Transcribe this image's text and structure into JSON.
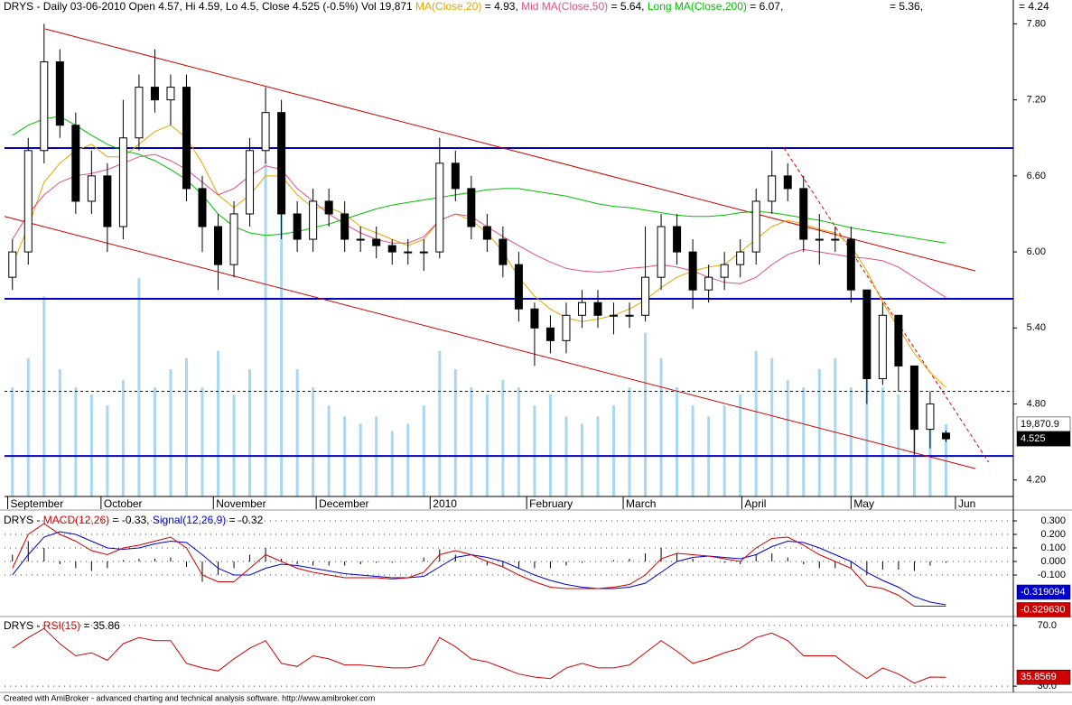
{
  "chart_data": [
    {
      "type": "candlestick",
      "title_parts": [
        {
          "text": "DRYS - Daily 03-06-2010 Open 4.57, Hi 4.59, Lo 4.5, Close 4.525 (-0.5%) Vol 19,871 ",
          "color": "#000000"
        },
        {
          "text": "MA(Close,20)",
          "color": "#e0a800"
        },
        {
          "text": " = 4.93, ",
          "color": "#000000"
        },
        {
          "text": "Mid MA(Close,50)",
          "color": "#e05080"
        },
        {
          "text": " = 5.64, ",
          "color": "#000000"
        },
        {
          "text": "Long MA(Close,200)",
          "color": "#00c000"
        },
        {
          "text": " = 6.07,",
          "color": "#000000"
        }
      ],
      "header_extra": "= 5.36,",
      "header_right": "= 4.24",
      "x": [
        0,
        1,
        2,
        3,
        4,
        5,
        6,
        7,
        8,
        9,
        10,
        11,
        12,
        13,
        14,
        15,
        16,
        17,
        18,
        19,
        20,
        21,
        22,
        23,
        24,
        25,
        26,
        27,
        28,
        29,
        30,
        31,
        32,
        33,
        34,
        35,
        36,
        37,
        38,
        39,
        40,
        41,
        42,
        43,
        44,
        45,
        46,
        47,
        48,
        49,
        50,
        51,
        52,
        53,
        54,
        55,
        56,
        57,
        58,
        59
      ],
      "open": [
        5.8,
        6.0,
        6.8,
        7.5,
        7.0,
        6.4,
        6.6,
        6.2,
        6.9,
        7.3,
        7.2,
        7.3,
        6.5,
        6.2,
        5.9,
        6.3,
        6.8,
        7.1,
        6.3,
        6.1,
        6.4,
        6.3,
        6.1,
        6.1,
        6.05,
        6.0,
        6.0,
        6.0,
        6.7,
        6.5,
        6.2,
        6.1,
        5.9,
        5.55,
        5.4,
        5.3,
        5.5,
        5.6,
        5.5,
        5.5,
        5.5,
        5.8,
        6.2,
        6.0,
        5.7,
        5.8,
        5.9,
        6.0,
        6.4,
        6.6,
        6.5,
        6.1,
        6.1,
        6.1,
        5.7,
        5.0,
        5.5,
        5.1,
        4.6,
        4.57
      ],
      "high": [
        6.1,
        6.9,
        7.8,
        7.6,
        7.1,
        6.8,
        6.7,
        7.2,
        7.4,
        7.6,
        7.4,
        7.4,
        6.6,
        6.3,
        6.4,
        6.9,
        7.3,
        7.2,
        6.4,
        6.5,
        6.5,
        6.4,
        6.2,
        6.2,
        6.1,
        6.1,
        6.1,
        6.9,
        6.8,
        6.6,
        6.3,
        6.2,
        6.0,
        5.6,
        5.5,
        5.6,
        5.7,
        5.7,
        5.6,
        5.6,
        6.2,
        6.3,
        6.3,
        6.1,
        5.9,
        6.0,
        6.1,
        6.5,
        6.8,
        6.7,
        6.6,
        6.3,
        6.2,
        6.2,
        5.7,
        5.6,
        5.5,
        5.1,
        4.9,
        4.59
      ],
      "low": [
        5.7,
        5.9,
        6.7,
        6.9,
        6.3,
        6.3,
        6.0,
        6.1,
        6.8,
        7.1,
        7.0,
        6.4,
        6.0,
        5.7,
        5.8,
        6.2,
        6.7,
        6.1,
        6.0,
        6.0,
        6.2,
        6.0,
        6.0,
        5.95,
        5.9,
        5.9,
        5.85,
        5.95,
        6.4,
        6.1,
        6.0,
        5.8,
        5.45,
        5.1,
        5.2,
        5.2,
        5.4,
        5.4,
        5.35,
        5.4,
        5.45,
        5.7,
        5.9,
        5.55,
        5.6,
        5.7,
        5.8,
        5.9,
        6.3,
        6.4,
        6.0,
        5.9,
        6.0,
        5.6,
        4.8,
        4.95,
        4.9,
        4.4,
        4.45,
        4.5
      ],
      "close": [
        6.0,
        6.8,
        7.5,
        7.0,
        6.4,
        6.6,
        6.2,
        6.9,
        7.3,
        7.2,
        7.3,
        6.5,
        6.2,
        5.9,
        6.3,
        6.8,
        7.1,
        6.3,
        6.1,
        6.4,
        6.3,
        6.1,
        6.1,
        6.05,
        6.0,
        6.0,
        6.0,
        6.7,
        6.5,
        6.2,
        6.1,
        5.9,
        5.55,
        5.4,
        5.3,
        5.5,
        5.6,
        5.5,
        5.5,
        5.5,
        5.8,
        6.2,
        6.0,
        5.7,
        5.8,
        5.9,
        6.0,
        6.4,
        6.6,
        6.5,
        6.1,
        6.1,
        6.1,
        5.7,
        5.0,
        5.5,
        5.1,
        4.6,
        4.8,
        4.525
      ],
      "volume": [
        30000,
        38000,
        55000,
        35000,
        30000,
        28000,
        25000,
        32000,
        60000,
        30000,
        35000,
        38000,
        30000,
        40000,
        28000,
        35000,
        92000,
        88000,
        35000,
        30000,
        25000,
        22000,
        20000,
        22000,
        18000,
        20000,
        25000,
        40000,
        35000,
        30000,
        28000,
        32000,
        30000,
        25000,
        28000,
        22000,
        20000,
        22000,
        25000,
        30000,
        45000,
        38000,
        30000,
        25000,
        22000,
        25000,
        28000,
        40000,
        38000,
        32000,
        30000,
        35000,
        38000,
        30000,
        55000,
        30000,
        28000,
        24000,
        22000,
        19870.9
      ],
      "volume_color": "#a8d8f0",
      "volume_ylim": [
        0,
        132000
      ],
      "volume_last_label": "19,870.9",
      "ma": [
        {
          "color": "#e0a800",
          "values": [
            5.9,
            6.2,
            6.55,
            6.7,
            6.8,
            6.85,
            6.75,
            6.75,
            6.85,
            6.95,
            7.0,
            6.9,
            6.7,
            6.45,
            6.35,
            6.45,
            6.6,
            6.6,
            6.45,
            6.35,
            6.35,
            6.3,
            6.2,
            6.15,
            6.1,
            6.05,
            6.1,
            6.25,
            6.3,
            6.25,
            6.15,
            6.0,
            5.8,
            5.65,
            5.55,
            5.48,
            5.45,
            5.47,
            5.5,
            5.55,
            5.62,
            5.72,
            5.8,
            5.85,
            5.88,
            5.9,
            6.0,
            6.1,
            6.2,
            6.25,
            6.22,
            6.18,
            6.15,
            6.05,
            5.85,
            5.6,
            5.4,
            5.2,
            5.05,
            4.93
          ]
        },
        {
          "color": "#e05080",
          "values": [
            6.1,
            6.3,
            6.45,
            6.55,
            6.6,
            6.62,
            6.65,
            6.7,
            6.75,
            6.77,
            6.72,
            6.65,
            6.55,
            6.45,
            6.5,
            6.6,
            6.68,
            6.65,
            6.5,
            6.4,
            6.3,
            6.22,
            6.15,
            6.1,
            6.07,
            6.07,
            6.12,
            6.25,
            6.3,
            6.28,
            6.2,
            6.12,
            6.05,
            5.98,
            5.92,
            5.87,
            5.85,
            5.84,
            5.85,
            5.87,
            5.88,
            5.9,
            5.88,
            5.85,
            5.8,
            5.76,
            5.75,
            5.8,
            5.9,
            5.98,
            6.02,
            6.0,
            5.98,
            5.96,
            5.95,
            5.93,
            5.88,
            5.8,
            5.72,
            5.64
          ]
        },
        {
          "color": "#00c000",
          "values": [
            6.92,
            7.0,
            7.05,
            7.07,
            7.0,
            6.92,
            6.85,
            6.8,
            6.77,
            6.72,
            6.65,
            6.57,
            6.45,
            6.3,
            6.2,
            6.15,
            6.13,
            6.14,
            6.16,
            6.19,
            6.22,
            6.26,
            6.3,
            6.34,
            6.37,
            6.39,
            6.41,
            6.43,
            6.45,
            6.47,
            6.49,
            6.5,
            6.5,
            6.48,
            6.46,
            6.44,
            6.41,
            6.38,
            6.36,
            6.35,
            6.33,
            6.31,
            6.29,
            6.28,
            6.28,
            6.29,
            6.31,
            6.32,
            6.31,
            6.29,
            6.27,
            6.25,
            6.22,
            6.19,
            6.17,
            6.15,
            6.13,
            6.11,
            6.09,
            6.07
          ]
        }
      ],
      "hlines": [
        {
          "value": 6.82,
          "color": "#0000c8",
          "dashed": false
        },
        {
          "value": 5.63,
          "color": "#0000c8",
          "dashed": false
        },
        {
          "value": 4.39,
          "color": "#0000c8",
          "dashed": false
        },
        {
          "value": 4.9,
          "color": "#0000c8",
          "dashed": true
        }
      ],
      "trendlines": [
        {
          "x": [
            2.07,
            60.86
          ],
          "y": [
            7.76,
            5.85
          ],
          "color": "#d00000",
          "dashed": false
        },
        {
          "x": [
            -0.5,
            60.86
          ],
          "y": [
            6.28,
            4.29
          ],
          "color": "#d00000",
          "dashed": false
        },
        {
          "x": [
            48.76,
            61.7
          ],
          "y": [
            6.82,
            4.34
          ],
          "color": "#e00000",
          "dashed": true
        }
      ],
      "xlim": [
        -0.5,
        62
      ],
      "xticks": [
        {
          "value": -0.3,
          "label": "September"
        },
        {
          "value": 5.6,
          "label": "October"
        },
        {
          "value": 12.7,
          "label": "November"
        },
        {
          "value": 19.2,
          "label": "December"
        },
        {
          "value": 26.4,
          "label": "2010"
        },
        {
          "value": 32.5,
          "label": "February"
        },
        {
          "value": 38.6,
          "label": "March"
        },
        {
          "value": 46.1,
          "label": "April"
        },
        {
          "value": 53,
          "label": "May"
        },
        {
          "value": 59.6,
          "label": "Jun"
        }
      ],
      "ylim": [
        4.07,
        7.86
      ],
      "yticks": [
        {
          "value": 4.2,
          "label": "4.20"
        },
        {
          "value": 4.8,
          "label": "4.80"
        },
        {
          "value": 5.4,
          "label": "5.40"
        },
        {
          "value": 6.0,
          "label": "6.00"
        },
        {
          "value": 6.6,
          "label": "6.60"
        },
        {
          "value": 7.2,
          "label": "7.20"
        },
        {
          "value": 7.8,
          "label": "7.80"
        }
      ]
    },
    {
      "type": "macd",
      "title_parts": [
        {
          "text": "DRYS - ",
          "color": "#000000"
        },
        {
          "text": "MACD(12,26)",
          "color": "#d00000"
        },
        {
          "text": " = -0.33, ",
          "color": "#000000"
        },
        {
          "text": "Signal(12,26,9)",
          "color": "#0000d0"
        },
        {
          "text": " = -0.32",
          "color": "#000000"
        }
      ],
      "macd": {
        "color": "#d00000",
        "last_label": "-0.329630",
        "values": [
          -0.05,
          0.2,
          0.28,
          0.2,
          0.15,
          0.08,
          0.05,
          0.1,
          0.12,
          0.15,
          0.18,
          0.1,
          -0.1,
          -0.15,
          -0.15,
          -0.05,
          0.05,
          0.0,
          -0.05,
          -0.08,
          -0.1,
          -0.12,
          -0.12,
          -0.12,
          -0.13,
          -0.12,
          -0.08,
          0.05,
          0.08,
          0.05,
          0.0,
          -0.04,
          -0.1,
          -0.15,
          -0.19,
          -0.2,
          -0.2,
          -0.2,
          -0.19,
          -0.17,
          -0.1,
          0.02,
          0.06,
          0.05,
          0.04,
          0.02,
          0.0,
          0.1,
          0.17,
          0.18,
          0.12,
          0.05,
          0.0,
          -0.05,
          -0.18,
          -0.2,
          -0.25,
          -0.33,
          -0.33,
          -0.33
        ]
      },
      "signal": {
        "color": "#0000d0",
        "last_label": "-0.319094",
        "values": [
          -0.1,
          0.05,
          0.18,
          0.22,
          0.2,
          0.15,
          0.1,
          0.09,
          0.1,
          0.13,
          0.15,
          0.14,
          0.05,
          -0.05,
          -0.1,
          -0.1,
          -0.05,
          -0.02,
          -0.03,
          -0.05,
          -0.07,
          -0.09,
          -0.1,
          -0.11,
          -0.12,
          -0.12,
          -0.11,
          -0.04,
          0.03,
          0.05,
          0.03,
          0.0,
          -0.05,
          -0.1,
          -0.14,
          -0.17,
          -0.19,
          -0.2,
          -0.2,
          -0.19,
          -0.16,
          -0.08,
          0.0,
          0.03,
          0.04,
          0.03,
          0.02,
          0.05,
          0.11,
          0.15,
          0.14,
          0.1,
          0.05,
          0.0,
          -0.08,
          -0.14,
          -0.19,
          -0.26,
          -0.3,
          -0.32
        ]
      },
      "histogram": {
        "color": "#000000",
        "values": [
          0.05,
          0.15,
          0.1,
          -0.02,
          -0.05,
          -0.07,
          -0.05,
          0.01,
          0.02,
          0.02,
          0.03,
          -0.04,
          -0.15,
          -0.1,
          -0.05,
          0.05,
          0.1,
          0.02,
          -0.02,
          -0.03,
          -0.03,
          -0.03,
          -0.02,
          -0.01,
          -0.01,
          0.0,
          0.03,
          0.09,
          0.05,
          0.0,
          -0.03,
          -0.04,
          -0.05,
          -0.05,
          -0.05,
          -0.03,
          -0.01,
          0.0,
          0.01,
          0.02,
          0.06,
          0.1,
          0.06,
          0.02,
          0.0,
          -0.01,
          -0.02,
          0.05,
          0.06,
          0.03,
          -0.02,
          -0.05,
          -0.05,
          -0.05,
          -0.1,
          -0.06,
          -0.06,
          -0.07,
          -0.03,
          -0.01
        ]
      },
      "ylim": [
        -0.4,
        0.36
      ],
      "yticks": [
        {
          "value": 0.3,
          "label": "0.300"
        },
        {
          "value": 0.2,
          "label": "0.200"
        },
        {
          "value": 0.1,
          "label": "0.100"
        },
        {
          "value": 0,
          "label": "0.000"
        },
        {
          "value": -0.1,
          "label": "-0.100"
        }
      ],
      "grid": true
    },
    {
      "type": "line",
      "title_parts": [
        {
          "text": "DRYS - ",
          "color": "#000000"
        },
        {
          "text": "RSI(15)",
          "color": "#d00000"
        },
        {
          "text": " = 35.86",
          "color": "#000000"
        }
      ],
      "rsi": {
        "color": "#d00000",
        "last_label": "35.8569",
        "values": [
          55,
          62,
          68,
          58,
          50,
          52,
          47,
          58,
          62,
          60,
          60,
          45,
          42,
          40,
          48,
          55,
          60,
          45,
          43,
          50,
          48,
          44,
          44,
          43,
          42,
          42,
          44,
          62,
          56,
          48,
          46,
          42,
          38,
          36,
          35,
          42,
          45,
          42,
          42,
          44,
          52,
          60,
          53,
          45,
          48,
          52,
          55,
          62,
          65,
          60,
          50,
          50,
          50,
          42,
          35,
          42,
          38,
          32,
          36,
          35.86
        ]
      },
      "ylim": [
        27.1,
        72.9
      ],
      "yticks": [
        {
          "value": 70,
          "label": "70.0"
        },
        {
          "value": 30,
          "label": "30.0"
        }
      ],
      "grid": true
    }
  ],
  "footer": "Created with AmiBroker - advanced charting and technical analysis software. http://www.amibroker.com"
}
